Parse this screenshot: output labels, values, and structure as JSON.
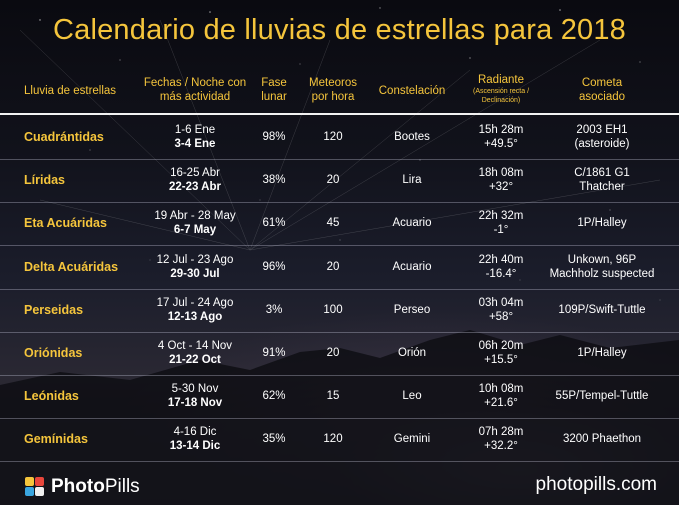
{
  "title": "Calendario de lluvias de estrellas para 2018",
  "headers": {
    "shower": "Lluvia de estrellas",
    "dates": [
      "Fechas / Noche con",
      "más actividad"
    ],
    "moon": [
      "Fase",
      "lunar"
    ],
    "meteors": [
      "Meteoros",
      "por hora"
    ],
    "constellation": "Constelación",
    "radiant": "Radiante",
    "radiant_sub": [
      "(Ascensión recta /",
      "Declinación)"
    ],
    "comet": [
      "Cometa",
      "asociado"
    ]
  },
  "rows": [
    {
      "name": "Cuadrántidas",
      "range": "1-6 Ene",
      "peak": "3-4 Ene",
      "moon": "98%",
      "rate": "120",
      "constellation": "Bootes",
      "ra": "15h 28m",
      "dec": "+49.5°",
      "comet": [
        "2003 EH1",
        "(asteroide)"
      ]
    },
    {
      "name": "Líridas",
      "range": "16-25 Abr",
      "peak": "22-23 Abr",
      "moon": "38%",
      "rate": "20",
      "constellation": "Lira",
      "ra": "18h 08m",
      "dec": "+32°",
      "comet": [
        "C/1861 G1",
        "Thatcher"
      ]
    },
    {
      "name": "Eta Acuáridas",
      "range": "19 Abr - 28 May",
      "peak": "6-7 May",
      "moon": "61%",
      "rate": "45",
      "constellation": "Acuario",
      "ra": "22h 32m",
      "dec": "-1°",
      "comet": [
        "1P/Halley",
        ""
      ]
    },
    {
      "name": "Delta Acuáridas",
      "range": "12 Jul - 23 Ago",
      "peak": "29-30 Jul",
      "moon": "96%",
      "rate": "20",
      "constellation": "Acuario",
      "ra": "22h 40m",
      "dec": "-16.4°",
      "comet": [
        "Unkown,  96P",
        "Machholz suspected"
      ]
    },
    {
      "name": "Perseidas",
      "range": "17 Jul - 24 Ago",
      "peak": "12-13 Ago",
      "moon": "3%",
      "rate": "100",
      "constellation": "Perseo",
      "ra": "03h 04m",
      "dec": "+58°",
      "comet": [
        "109P/Swift-Tuttle",
        ""
      ]
    },
    {
      "name": "Oriónidas",
      "range": "4 Oct - 14 Nov",
      "peak": "21-22 Oct",
      "moon": "91%",
      "rate": "20",
      "constellation": "Orión",
      "ra": "06h 20m",
      "dec": "+15.5°",
      "comet": [
        "1P/Halley",
        ""
      ]
    },
    {
      "name": "Leónidas",
      "range": "5-30 Nov",
      "peak": "17-18 Nov",
      "moon": "62%",
      "rate": "15",
      "constellation": "Leo",
      "ra": "10h 08m",
      "dec": "+21.6°",
      "comet": [
        "55P/Tempel-Tuttle",
        ""
      ]
    },
    {
      "name": "Gemínidas",
      "range": "4-16 Dic",
      "peak": "13-14 Dic",
      "moon": "35%",
      "rate": "120",
      "constellation": "Gemini",
      "ra": "07h 28m",
      "dec": "+32.2°",
      "comet": [
        "3200 Phaethon",
        ""
      ]
    }
  ],
  "footer": {
    "brand_bold": "Photo",
    "brand_light": "Pills",
    "site": "photopills.com"
  },
  "colors": {
    "accent": "#f5c53c",
    "text": "#ffffff",
    "rule": "#f2f2f2"
  }
}
